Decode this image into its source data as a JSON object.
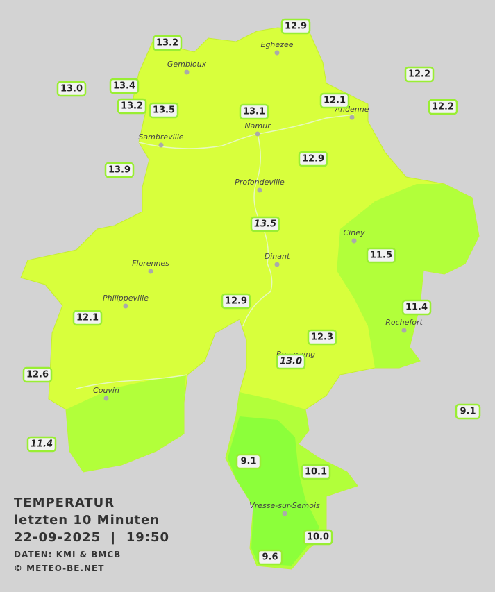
{
  "title": {
    "lines": [
      "TEMPERATUR",
      "letzten 10 Minuten",
      "22-09-2025  |  19:50"
    ],
    "source": "DATEN: KMI & BMCB",
    "copyright": "© METEO-BE.NET"
  },
  "cities": [
    "Eghezee",
    "Gembloux",
    "Andenne",
    "Namur",
    "Sambreville",
    "Profondeville",
    "Ciney",
    "Dinant",
    "Florennes",
    "Philippeville",
    "Rochefort",
    "Beauraing",
    "Couvin",
    "Vresse-sur-Semois"
  ],
  "stations": [
    {
      "label": "12.9"
    },
    {
      "label": "13.2"
    },
    {
      "label": "12.2"
    },
    {
      "label": "13.0"
    },
    {
      "label": "13.4"
    },
    {
      "label": "12.1"
    },
    {
      "label": "12.2"
    },
    {
      "label": "13.2"
    },
    {
      "label": "13.5"
    },
    {
      "label": "13.1"
    },
    {
      "label": "12.9"
    },
    {
      "label": "13.9"
    },
    {
      "label": "13.5",
      "italic": true
    },
    {
      "label": "11.5"
    },
    {
      "label": "11.4"
    },
    {
      "label": "12.9"
    },
    {
      "label": "12.1"
    },
    {
      "label": "12.3"
    },
    {
      "label": "13.0",
      "italic": true
    },
    {
      "label": "12.6"
    },
    {
      "label": "9.1"
    },
    {
      "label": "11.4",
      "italic": true
    },
    {
      "label": "9.1"
    },
    {
      "label": "10.1"
    },
    {
      "label": "10.0"
    },
    {
      "label": "9.6"
    }
  ]
}
